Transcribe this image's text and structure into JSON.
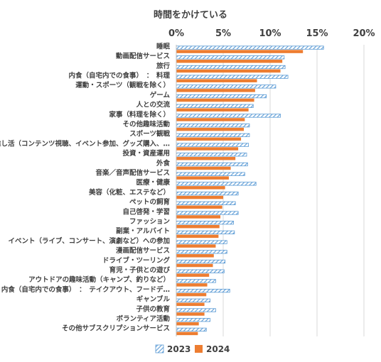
{
  "chart_data": {
    "type": "bar",
    "orientation": "horizontal",
    "title": "時間をかけている",
    "xlabel": "",
    "ylabel": "",
    "xlim": [
      0,
      20
    ],
    "x_ticks": [
      "0%",
      "5%",
      "10%",
      "15%",
      "20%"
    ],
    "x_tick_values": [
      0,
      5,
      10,
      15,
      20
    ],
    "grid": true,
    "legend_position": "bottom",
    "categories": [
      "睡眠",
      "動画配信サービス",
      "旅行",
      "内食（自宅内での食事）　：　料理",
      "運動・スポーツ（観戦を除く）",
      "ゲーム",
      "人との交流",
      "家事（料理を除く）",
      "その他趣味活動",
      "スポーツ観戦",
      "推し活（コンテンツ視聴、イベント参加、グッズ購入、…",
      "投資・資産運用",
      "外食",
      "音楽／音声配信サービス",
      "医療・健康",
      "美容（化粧、エステなど）",
      "ペットの飼育",
      "自己啓発・学習",
      "ファッション",
      "副業・アルバイト",
      "イベント（ライブ、コンサート、演劇など）への参加",
      "漫画配信サービス",
      "ドライブ・ツーリング",
      "育児・子供との遊び",
      "アウトドアの趣味活動（キャンプ、釣りなど）",
      "内食（自宅内での食事）　：　テイクアウト、フードデ…",
      "ギャンブル",
      "子供の教育",
      "ボランティア活動",
      "その他サブスクリプションサービス"
    ],
    "series": [
      {
        "name": "2023",
        "pattern": "diagonal-hatch",
        "color": "#5B9BD5",
        "values": [
          15.7,
          11.5,
          11.6,
          11.9,
          10.6,
          9.6,
          8.2,
          11.1,
          7.8,
          7.8,
          7.7,
          7.5,
          7.6,
          7.3,
          8.5,
          6.6,
          6.3,
          6.6,
          6.1,
          6.2,
          5.4,
          5.4,
          5.2,
          5.1,
          4.2,
          5.7,
          3.6,
          4.2,
          3.6,
          3.2
        ]
      },
      {
        "name": "2024",
        "pattern": "solid",
        "color": "#ED7D31",
        "values": [
          13.5,
          11.3,
          11.1,
          8.6,
          8.4,
          8.3,
          7.7,
          7.3,
          7.2,
          6.9,
          6.6,
          6.3,
          5.8,
          5.6,
          5.2,
          5.0,
          4.9,
          4.7,
          4.6,
          4.5,
          4.2,
          4.0,
          3.9,
          3.5,
          3.3,
          3.2,
          3.0,
          3.0,
          2.4,
          2.3
        ]
      }
    ]
  }
}
